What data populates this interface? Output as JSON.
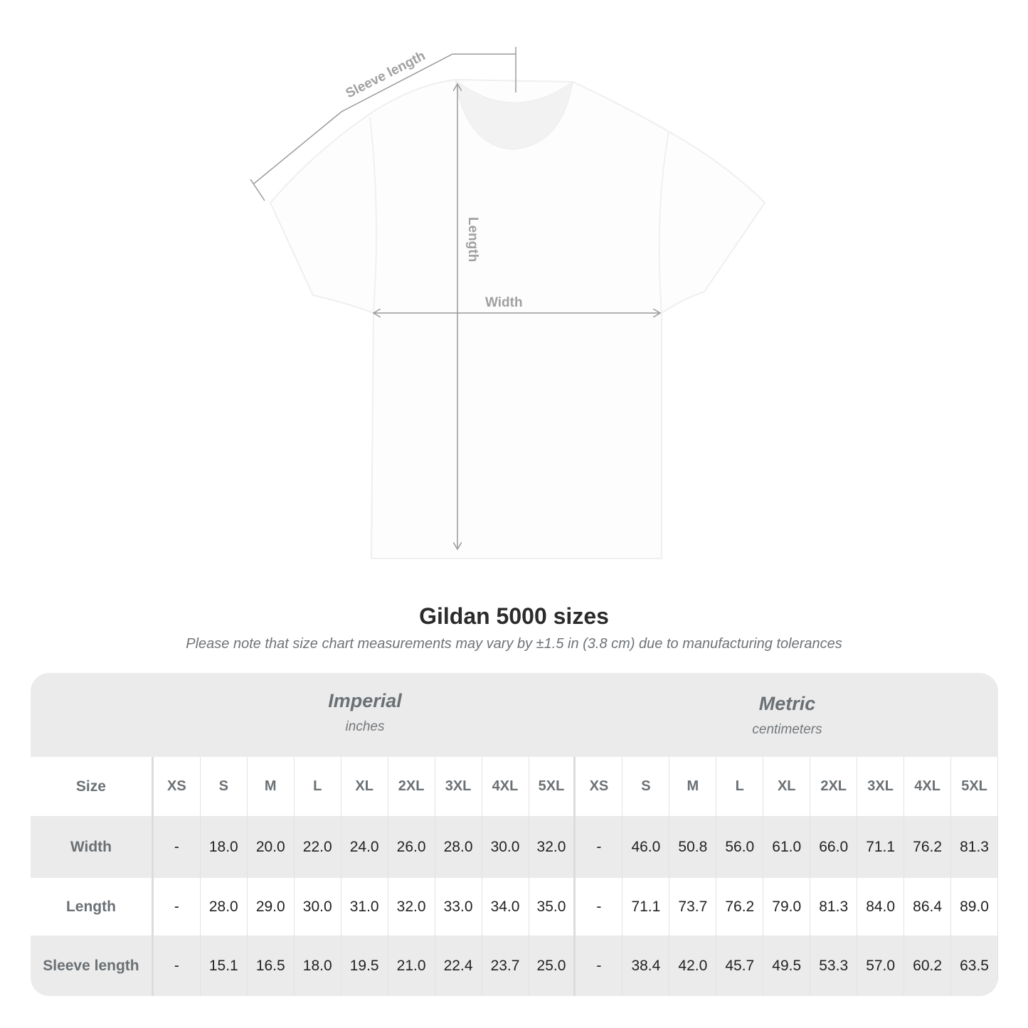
{
  "diagram": {
    "labels": {
      "sleeve": "Sleeve length",
      "length": "Length",
      "width": "Width"
    },
    "line_color": "#9a9a9a"
  },
  "title": "Gildan 5000 sizes",
  "note": "Please note that size chart measurements may vary by ±1.5 in (3.8 cm) due to manufacturing tolerances",
  "table": {
    "groups": [
      {
        "title": "Imperial",
        "subtitle": "inches"
      },
      {
        "title": "Metric",
        "subtitle": "centimeters"
      }
    ],
    "size_label": "Size",
    "sizes": [
      "XS",
      "S",
      "M",
      "L",
      "XL",
      "2XL",
      "3XL",
      "4XL",
      "5XL"
    ],
    "rows": [
      {
        "label": "Width",
        "imperial": [
          "-",
          "18.0",
          "20.0",
          "22.0",
          "24.0",
          "26.0",
          "28.0",
          "30.0",
          "32.0"
        ],
        "metric": [
          "-",
          "46.0",
          "50.8",
          "56.0",
          "61.0",
          "66.0",
          "71.1",
          "76.2",
          "81.3"
        ]
      },
      {
        "label": "Length",
        "imperial": [
          "-",
          "28.0",
          "29.0",
          "30.0",
          "31.0",
          "32.0",
          "33.0",
          "34.0",
          "35.0"
        ],
        "metric": [
          "-",
          "71.1",
          "73.7",
          "76.2",
          "79.0",
          "81.3",
          "84.0",
          "86.4",
          "89.0"
        ]
      },
      {
        "label": "Sleeve length",
        "imperial": [
          "-",
          "15.1",
          "16.5",
          "18.0",
          "19.5",
          "21.0",
          "22.4",
          "23.7",
          "25.0"
        ],
        "metric": [
          "-",
          "38.4",
          "42.0",
          "45.7",
          "49.5",
          "53.3",
          "57.0",
          "60.2",
          "63.5"
        ]
      }
    ],
    "colors": {
      "header_bg": "#ebebeb",
      "label_text": "#6b7074",
      "value_text": "#222222"
    }
  }
}
